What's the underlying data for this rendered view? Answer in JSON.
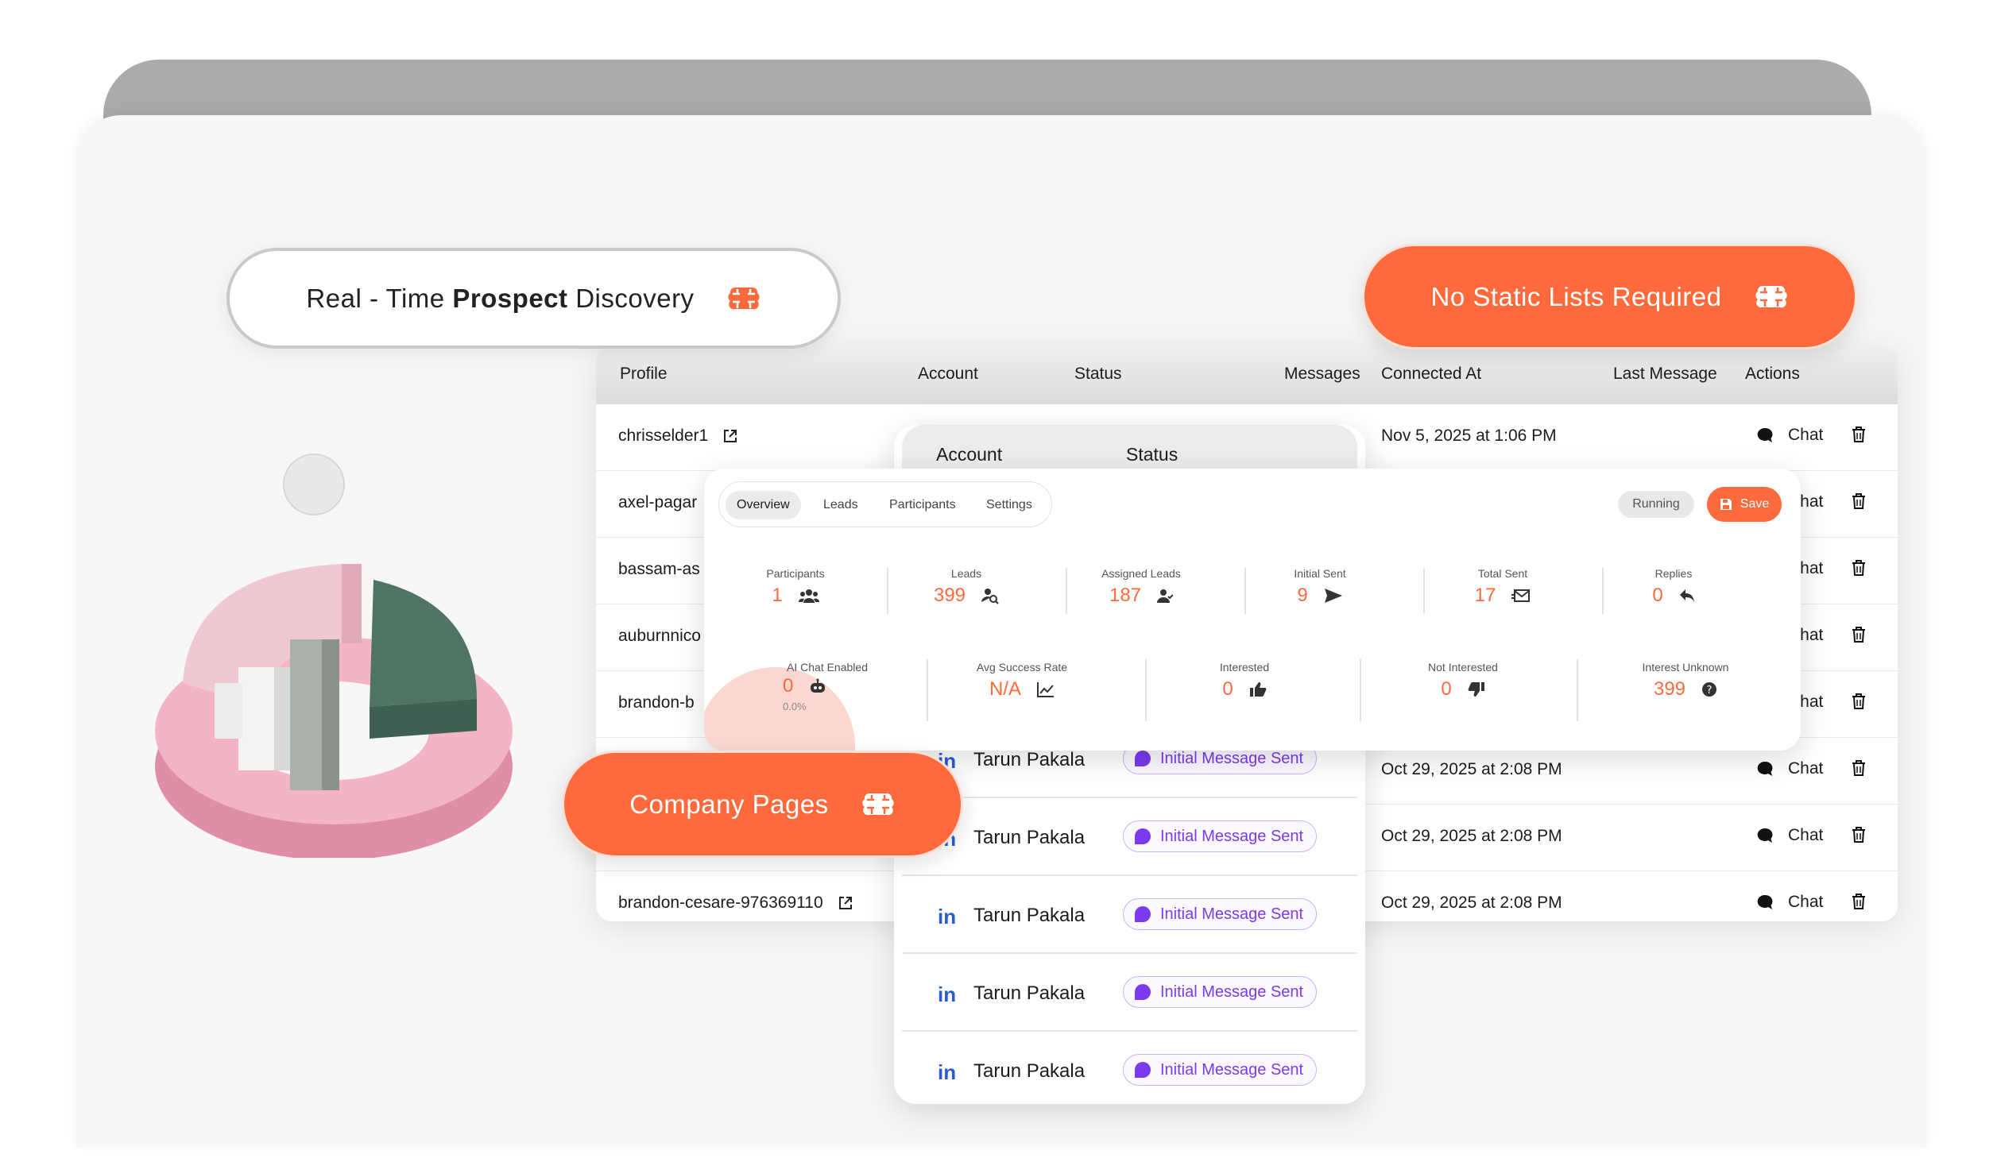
{
  "callouts": {
    "discovery_prefix": "Real - Time",
    "discovery_bold": "Prospect",
    "discovery_suffix": "Discovery",
    "static_lists": "No Static Lists Required",
    "company_pages": "Company Pages",
    "icon": "brain-icon"
  },
  "main_table": {
    "headers": {
      "profile": "Profile",
      "account": "Account",
      "status": "Status",
      "messages": "Messages",
      "connected_at": "Connected At",
      "last_message": "Last Message",
      "actions": "Actions"
    },
    "rows": [
      {
        "profile": "chrisselder1",
        "connected_at": "Nov 5, 2025 at 1:06 PM",
        "chat": "Chat"
      },
      {
        "profile": "axel-pagar",
        "connected_at": "",
        "chat": "Chat"
      },
      {
        "profile": "bassam-as",
        "connected_at": "",
        "chat": "Chat"
      },
      {
        "profile": "auburnnico",
        "connected_at": "",
        "chat": "Chat"
      },
      {
        "profile": "brandon-b",
        "connected_at": "",
        "chat": "Chat"
      },
      {
        "profile": "",
        "connected_at": "Oct 29, 2025 at 2:08 PM",
        "chat": "Chat"
      },
      {
        "profile": "",
        "connected_at": "Oct 29, 2025 at 2:08 PM",
        "chat": "Chat"
      },
      {
        "profile": "brandon-cesare-976369110",
        "connected_at": "Oct 29, 2025 at 2:08 PM",
        "chat": "Chat"
      }
    ]
  },
  "leads_table": {
    "headers": {
      "account": "Account",
      "status": "Status"
    },
    "rows": [
      {
        "name": "Tarun Pakala",
        "status": "Initial Message Sent"
      },
      {
        "name": "Tarun Pakala",
        "status": "Initial Message Sent"
      },
      {
        "name": "Tarun Pakala",
        "status": "Initial Message Sent"
      },
      {
        "name": "Tarun Pakala",
        "status": "Initial Message Sent"
      },
      {
        "name": "Tarun Pakala",
        "status": "Initial Message Sent"
      }
    ]
  },
  "overview": {
    "tabs": [
      "Overview",
      "Leads",
      "Participants",
      "Settings"
    ],
    "active_tab": "Overview",
    "status": "Running",
    "save_label": "Save",
    "stats_row1": [
      {
        "label": "Participants",
        "value": "1",
        "icon": "users-icon"
      },
      {
        "label": "Leads",
        "value": "399",
        "icon": "user-search-icon"
      },
      {
        "label": "Assigned Leads",
        "value": "187",
        "icon": "user-check-icon"
      },
      {
        "label": "Initial Sent",
        "value": "9",
        "icon": "send-icon"
      },
      {
        "label": "Total Sent",
        "value": "17",
        "icon": "mail-icon"
      },
      {
        "label": "Replies",
        "value": "0",
        "icon": "reply-icon"
      }
    ],
    "stats_row2": [
      {
        "label": "AI Chat Enabled",
        "value": "0",
        "sub": "0.0%",
        "icon": "robot-icon"
      },
      {
        "label": "Avg Success Rate",
        "value": "N/A",
        "icon": "trend-icon"
      },
      {
        "label": "Interested",
        "value": "0",
        "icon": "thumbs-up-icon"
      },
      {
        "label": "Not Interested",
        "value": "0",
        "icon": "thumbs-down-icon"
      },
      {
        "label": "Interest Unknown",
        "value": "399",
        "icon": "help-icon"
      }
    ]
  },
  "colors": {
    "accent": "#ff6a3d",
    "purple": "#7b3aed",
    "linkedin": "#2a5bd7"
  }
}
